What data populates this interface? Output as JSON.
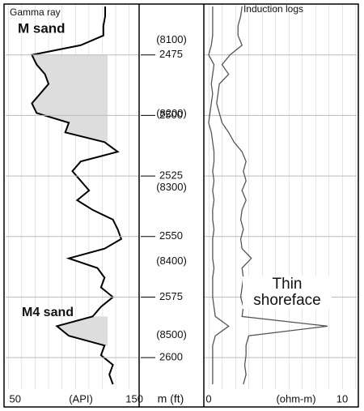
{
  "chart_data": [
    {
      "type": "log-track",
      "title": "Gamma ray",
      "xlabel": "(API)",
      "xlim": [
        42,
        154
      ],
      "xticks": [
        50,
        150
      ],
      "ylim": [
        2454,
        2613
      ],
      "annotations": [
        "M sand",
        "M4 sand"
      ],
      "depth": [
        2455,
        2459,
        2463,
        2467,
        2471,
        2475,
        2479,
        2483,
        2487,
        2491,
        2495,
        2499,
        2503,
        2507,
        2511,
        2515,
        2519,
        2523,
        2527,
        2531,
        2535,
        2539,
        2543,
        2547,
        2551,
        2555,
        2559,
        2563,
        2567,
        2571,
        2575,
        2579,
        2583,
        2587,
        2591,
        2595,
        2599,
        2603,
        2607,
        2611
      ],
      "series": [
        {
          "color": "#000000",
          "values": [
            125.5,
            125.5,
            124,
            124,
            105,
            64,
            68,
            75,
            78,
            71,
            64,
            68,
            95,
            92,
            125,
            136,
            105,
            98,
            105,
            112,
            102,
            115,
            132,
            136,
            139,
            125,
            95,
            119,
            125,
            122,
            132,
            122,
            115,
            85,
            95,
            125,
            122,
            132,
            129,
            132
          ]
        }
      ]
    },
    {
      "type": "depth-track",
      "ylabel": "m (ft)",
      "ylim": [
        2454,
        2613
      ],
      "yticks": [
        2475,
        2500,
        2525,
        2550,
        2575,
        2600
      ],
      "y2lim": [
        8051,
        8573
      ],
      "y2ticks": [
        {
          "value": 8100,
          "label": "(8100)"
        },
        {
          "value": 8200,
          "label": "(8200)"
        },
        {
          "value": 8300,
          "label": "(8300)"
        },
        {
          "value": 8400,
          "label": "(8400)"
        },
        {
          "value": 8500,
          "label": "(8500)"
        }
      ]
    },
    {
      "type": "log-track",
      "title": "Induction logs",
      "xlabel": "(ohm-m)",
      "xlim": [
        -0.36,
        11.09
      ],
      "xticks": [
        0,
        10
      ],
      "ylim": [
        2454,
        2613
      ],
      "annotations": [
        "Thin shoreface"
      ],
      "depth": [
        2455,
        2459,
        2463,
        2467,
        2471,
        2475,
        2479,
        2483,
        2487,
        2491,
        2495,
        2499,
        2503,
        2507,
        2511,
        2515,
        2519,
        2523,
        2527,
        2531,
        2535,
        2539,
        2543,
        2547,
        2551,
        2555,
        2559,
        2563,
        2567,
        2571,
        2575,
        2579,
        2583,
        2587,
        2591,
        2595,
        2599,
        2603,
        2607,
        2611
      ],
      "series": [
        {
          "color": "#555555",
          "values": [
            0.3,
            0.3,
            0.3,
            0.3,
            0.2,
            0.0,
            0.4,
            0.3,
            0.2,
            0.3,
            0.2,
            0.1,
            0.0,
            0.2,
            0.3,
            0.4,
            0.4,
            0.3,
            0.4,
            0.3,
            0.4,
            0.3,
            0.3,
            0.4,
            0.3,
            0.3,
            0.3,
            0.4,
            0.3,
            0.3,
            0.3,
            0.4,
            0.5,
            1.5,
            0.5,
            0.3,
            0.3,
            0.3,
            0.3,
            0.3
          ]
        },
        {
          "color": "#555555",
          "values": [
            2.5,
            2.4,
            2.2,
            2.2,
            2.5,
            1.6,
            1.0,
            1.5,
            0.8,
            0.7,
            0.6,
            0.8,
            1.0,
            1.5,
            1.9,
            2.5,
            2.8,
            2.6,
            2.8,
            2.5,
            2.8,
            2.5,
            2.4,
            2.6,
            2.4,
            2.5,
            3.2,
            2.5,
            2.6,
            2.5,
            2.4,
            2.6,
            2.5,
            8.9,
            3.0,
            2.8,
            2.8,
            2.7,
            2.8,
            2.6
          ]
        }
      ]
    }
  ]
}
